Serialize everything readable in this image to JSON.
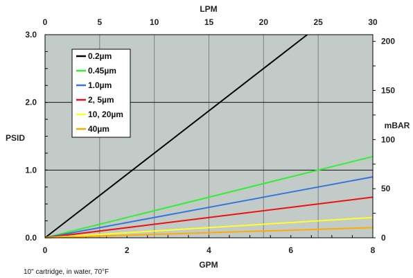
{
  "chart_data": {
    "type": "line",
    "x_bottom": {
      "label": "GPM",
      "range": [
        0,
        8
      ],
      "ticks": [
        "0",
        "2",
        "4",
        "6",
        "8"
      ]
    },
    "x_top": {
      "label": "LPM",
      "range": [
        0,
        30
      ],
      "ticks": [
        "0",
        "5",
        "10",
        "15",
        "20",
        "25",
        "30"
      ]
    },
    "y_left": {
      "label": "PSID",
      "range": [
        0,
        3.0
      ],
      "ticks": [
        "0.0",
        "1.0",
        "2.0",
        "3.0"
      ]
    },
    "y_right": {
      "label": "mBAR",
      "range": [
        0,
        206.8
      ],
      "ticks": [
        "0",
        "50",
        "100",
        "150",
        "200"
      ]
    },
    "series": [
      {
        "name": "0.2µm",
        "color": "#000000",
        "x": [
          0,
          6.4
        ],
        "y": [
          0,
          3.0
        ]
      },
      {
        "name": "0.45µm",
        "color": "#33ee33",
        "x": [
          0,
          8
        ],
        "y": [
          0,
          1.2
        ]
      },
      {
        "name": "1.0µm",
        "color": "#3377dd",
        "x": [
          0,
          8
        ],
        "y": [
          0,
          0.9
        ]
      },
      {
        "name": "2, 5µm",
        "color": "#ee1111",
        "x": [
          0,
          8
        ],
        "y": [
          0,
          0.6
        ]
      },
      {
        "name": "10, 20µm",
        "color": "#ffff22",
        "x": [
          0,
          8
        ],
        "y": [
          0,
          0.3
        ]
      },
      {
        "name": "40µm",
        "color": "#ffaa00",
        "x": [
          0,
          8
        ],
        "y": [
          0,
          0.15
        ]
      }
    ],
    "grid": true,
    "legend_position": "top-left",
    "plot_background": "#c3cbc9"
  },
  "footnote": "10\" cartridge, in water, 70°F"
}
